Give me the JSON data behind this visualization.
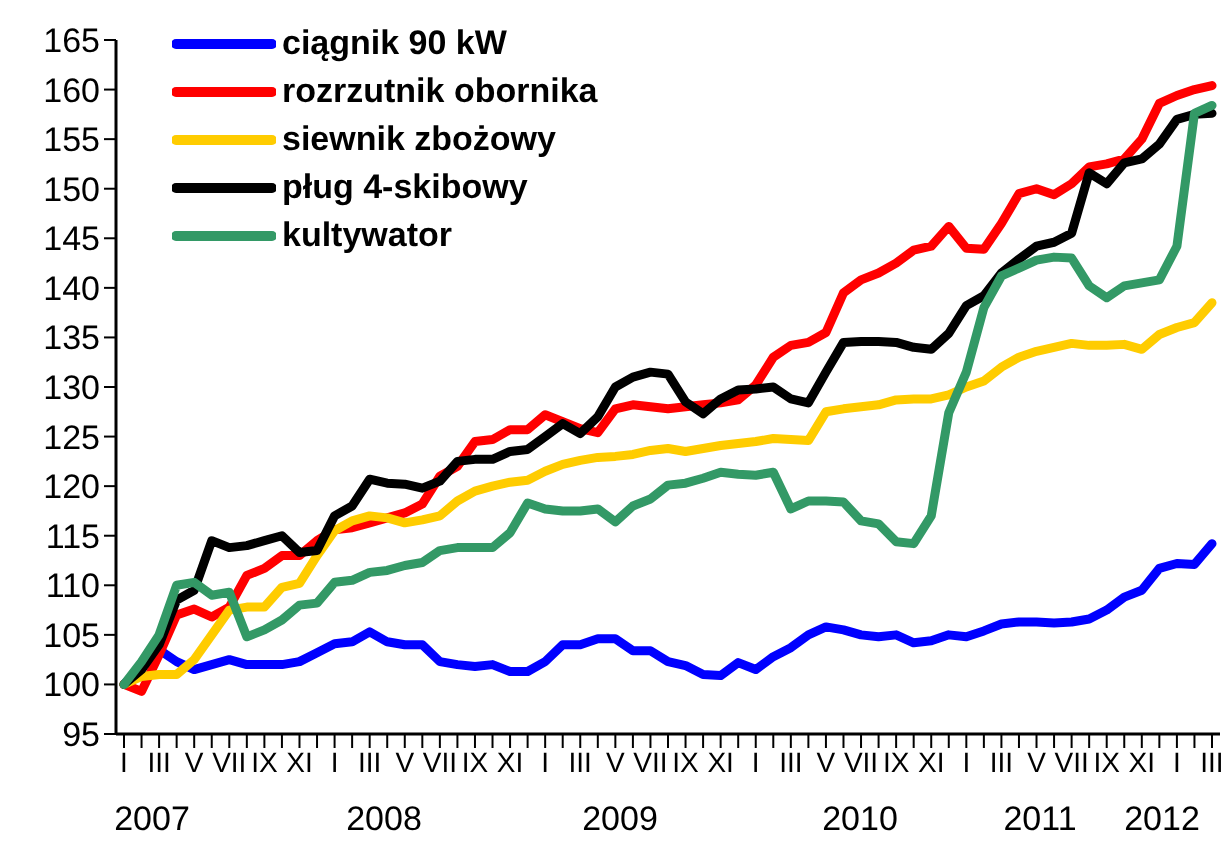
{
  "chart_data": {
    "type": "line",
    "categories": [
      "I",
      null,
      "III",
      null,
      "V",
      null,
      "VII",
      null,
      "IX",
      null,
      "XI",
      null,
      "I",
      null,
      "III",
      null,
      "V",
      null,
      "VII",
      null,
      "IX",
      null,
      "XI",
      null,
      "I",
      null,
      "III",
      null,
      "V",
      null,
      "VII",
      null,
      "IX",
      null,
      "XI",
      null,
      "I",
      null,
      "III",
      null,
      "V",
      null,
      "VII",
      null,
      "IX",
      null,
      "XI",
      null,
      "I",
      null,
      "III",
      null,
      "V",
      null,
      "VII",
      null,
      "IX",
      null,
      "XI",
      null,
      "I",
      null,
      "III"
    ],
    "series": [
      {
        "name": "ciągnik 90 kW",
        "color": "#0000ff",
        "values": [
          100,
          101.8,
          103.5,
          102.3,
          101.5,
          102,
          102.5,
          102,
          102,
          102,
          102.3,
          103.2,
          104.1,
          104.3,
          105.3,
          104.3,
          104,
          104,
          102.3,
          102,
          101.8,
          102,
          101.3,
          101.3,
          102.3,
          104,
          104,
          104.6,
          104.6,
          103.4,
          103.4,
          102.3,
          101.9,
          101,
          100.9,
          102.2,
          101.5,
          102.8,
          103.7,
          105,
          105.8,
          105.5,
          105,
          104.8,
          105,
          104.2,
          104.4,
          105,
          104.8,
          105.4,
          106.1,
          106.3,
          106.3,
          106.2,
          106.3,
          106.6,
          107.5,
          108.8,
          109.5,
          111.7,
          112.2,
          112.1,
          114.2
        ]
      },
      {
        "name": "rozrzutnik obornika",
        "color": "#ff0000",
        "values": [
          100,
          99.3,
          103,
          107,
          107.6,
          106.8,
          107.8,
          111,
          111.7,
          113,
          113,
          114.5,
          115.6,
          115.8,
          116.3,
          116.8,
          117.3,
          118.2,
          121,
          122,
          124.5,
          124.7,
          125.7,
          125.7,
          127.2,
          126.5,
          125.8,
          125.4,
          127.8,
          128.2,
          128,
          127.8,
          128,
          128.2,
          128.4,
          128.7,
          130.2,
          133,
          134.2,
          134.5,
          135.5,
          139.5,
          140.8,
          141.5,
          142.5,
          143.8,
          144.2,
          146.2,
          144,
          143.9,
          146.5,
          149.5,
          150,
          149.4,
          150.5,
          152.2,
          152.5,
          153,
          155,
          158.6,
          159.4,
          160,
          160.4
        ]
      },
      {
        "name": "siewnik zbożowy",
        "color": "#ffcc00",
        "values": [
          100,
          100.8,
          101,
          101,
          102.5,
          105,
          107.5,
          107.8,
          107.8,
          109.8,
          110.2,
          113,
          115.5,
          116.5,
          117,
          116.8,
          116.3,
          116.6,
          117,
          118.5,
          119.5,
          120,
          120.4,
          120.6,
          121.5,
          122.2,
          122.6,
          122.9,
          123,
          123.2,
          123.6,
          123.8,
          123.5,
          123.8,
          124.1,
          124.3,
          124.5,
          124.8,
          124.7,
          124.6,
          127.5,
          127.8,
          128,
          128.2,
          128.7,
          128.8,
          128.8,
          129.2,
          130,
          130.6,
          132,
          133,
          133.6,
          134,
          134.4,
          134.2,
          134.2,
          134.3,
          133.8,
          135.3,
          136,
          136.5,
          138.5
        ]
      },
      {
        "name": "pług 4-skibowy",
        "color": "#000000",
        "values": [
          100,
          101.5,
          104,
          108.5,
          109.5,
          114.5,
          113.8,
          114,
          114.5,
          115,
          113.3,
          113.5,
          117,
          118,
          120.7,
          120.3,
          120.2,
          119.8,
          120.5,
          122.5,
          122.7,
          122.7,
          123.5,
          123.7,
          125,
          126.3,
          125.3,
          127,
          130,
          131,
          131.5,
          131.3,
          128.5,
          127.3,
          128.8,
          129.7,
          129.8,
          130,
          128.8,
          128.4,
          131.5,
          134.5,
          134.6,
          134.6,
          134.5,
          134,
          133.8,
          135.4,
          138.2,
          139.2,
          141.5,
          142.9,
          144.2,
          144.6,
          145.5,
          151.6,
          150.5,
          152.6,
          153,
          154.5,
          157,
          157.5,
          157.6
        ]
      },
      {
        "name": "kultywator",
        "color": "#339966",
        "values": [
          100,
          102.3,
          105,
          110,
          110.3,
          109,
          109.3,
          104.8,
          105.5,
          106.5,
          108,
          108.2,
          110.3,
          110.5,
          111.3,
          111.5,
          112,
          112.3,
          113.5,
          113.8,
          113.8,
          113.8,
          115.3,
          118.3,
          117.7,
          117.5,
          117.5,
          117.7,
          116.4,
          118,
          118.7,
          120.1,
          120.3,
          120.8,
          121.4,
          121.2,
          121.1,
          121.4,
          117.7,
          118.5,
          118.5,
          118.4,
          116.5,
          116.2,
          114.4,
          114.2,
          117,
          127.4,
          131.5,
          138,
          141.2,
          142,
          142.8,
          143.1,
          143,
          140.2,
          139,
          140.2,
          140.5,
          140.8,
          144.2,
          157.6,
          158.4
        ]
      }
    ],
    "ylim": [
      95,
      165
    ],
    "yticks": [
      95,
      100,
      105,
      110,
      115,
      120,
      125,
      130,
      135,
      140,
      145,
      150,
      155,
      160,
      165
    ],
    "grid": false,
    "legend": "top left",
    "marker": "none",
    "line_style": "solid",
    "annotations": [
      "2007",
      "2008",
      "2009",
      "2010",
      "2011",
      "2012"
    ]
  }
}
